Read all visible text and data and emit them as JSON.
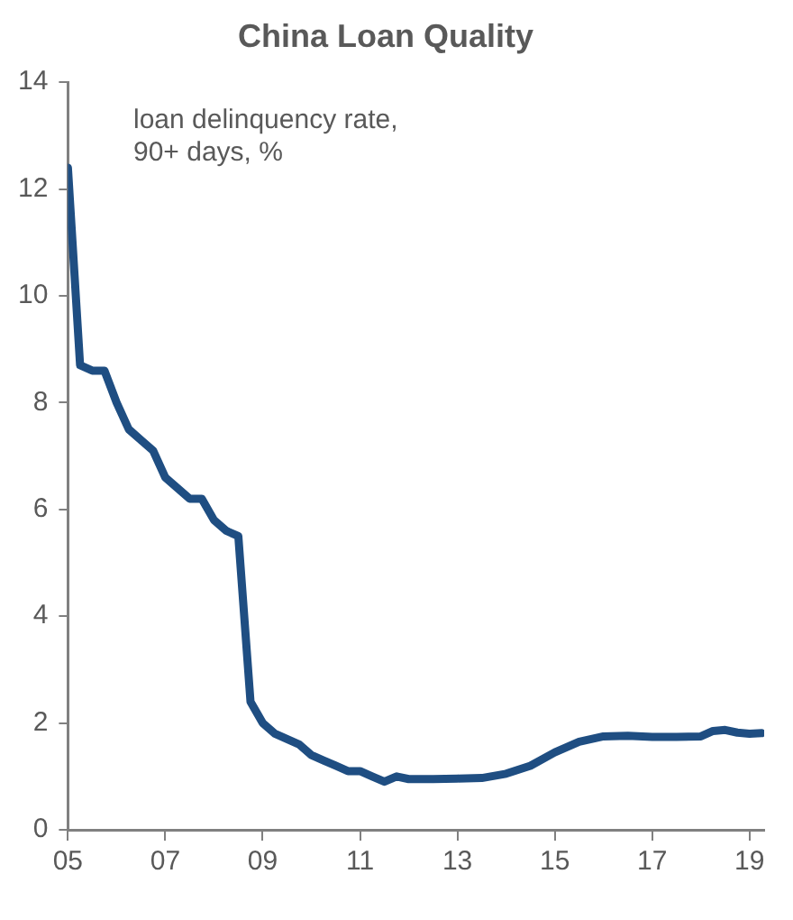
{
  "chart_data": {
    "type": "line",
    "title": "China Loan Quality",
    "annotations": [
      "loan delinquency rate, 90+ days, %"
    ],
    "x": [
      2005,
      2005.25,
      2005.5,
      2005.75,
      2006,
      2006.25,
      2006.5,
      2006.75,
      2007,
      2007.25,
      2007.5,
      2007.75,
      2008,
      2008.25,
      2008.5,
      2008.75,
      2009,
      2009.25,
      2009.5,
      2009.75,
      2010,
      2010.25,
      2010.5,
      2010.75,
      2011,
      2011.25,
      2011.5,
      2011.75,
      2012,
      2012.5,
      2013,
      2013.5,
      2014,
      2014.5,
      2015,
      2015.5,
      2016,
      2016.5,
      2017,
      2017.5,
      2018,
      2018.25,
      2018.5,
      2018.75,
      2019,
      2019.25
    ],
    "series": [
      {
        "color": "#1f4e82",
        "values": [
          12.4,
          8.7,
          8.6,
          8.6,
          8.0,
          7.5,
          7.3,
          7.1,
          6.6,
          6.4,
          6.2,
          6.2,
          5.8,
          5.6,
          5.5,
          2.4,
          2.0,
          1.8,
          1.7,
          1.6,
          1.4,
          1.3,
          1.2,
          1.1,
          1.1,
          1.0,
          0.9,
          1.0,
          0.95,
          0.95,
          0.96,
          0.97,
          1.05,
          1.2,
          1.45,
          1.65,
          1.75,
          1.76,
          1.74,
          1.74,
          1.75,
          1.85,
          1.87,
          1.82,
          1.8,
          1.81
        ]
      }
    ],
    "xlim": [
      2005,
      2019.3
    ],
    "xticks": [
      {
        "value": 2005,
        "label": "05"
      },
      {
        "value": 2007,
        "label": "07"
      },
      {
        "value": 2009,
        "label": "09"
      },
      {
        "value": 2011,
        "label": "11"
      },
      {
        "value": 2013,
        "label": "13"
      },
      {
        "value": 2015,
        "label": "15"
      },
      {
        "value": 2017,
        "label": "17"
      },
      {
        "value": 2019,
        "label": "19"
      }
    ],
    "ylim": [
      0,
      14
    ],
    "yticks": [
      0,
      2,
      4,
      6,
      8,
      10,
      12,
      14
    ],
    "grid": false,
    "legend": false,
    "marker": "none",
    "line_style": "solid"
  }
}
